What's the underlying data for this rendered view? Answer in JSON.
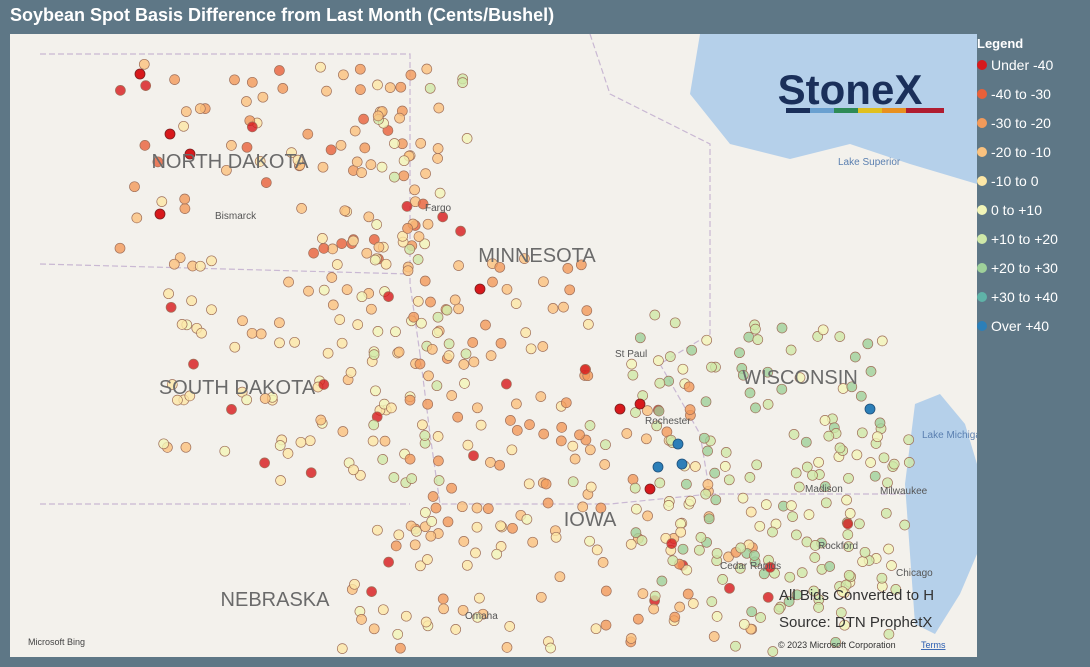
{
  "title": "Soybean Spot Basis Difference from Last Month (Cents/Bushel)",
  "legend": {
    "title": "Legend",
    "items": [
      {
        "label": "Under -40",
        "color": "#d7191c"
      },
      {
        "label": "-40 to -30",
        "color": "#e8603a"
      },
      {
        "label": "-30 to -20",
        "color": "#f39a5a"
      },
      {
        "label": "-20 to -10",
        "color": "#fbc27e"
      },
      {
        "label": "-10 to 0",
        "color": "#fde7a6"
      },
      {
        "label": "0 to +10",
        "color": "#f2f5b8"
      },
      {
        "label": "+10 to +20",
        "color": "#cfe8a8"
      },
      {
        "label": "+20 to +30",
        "color": "#9fd19a"
      },
      {
        "label": "+30 to +40",
        "color": "#5fb3a8"
      },
      {
        "label": "Over +40",
        "color": "#2c7fb8"
      }
    ]
  },
  "state_labels": [
    "NORTH DAKOTA",
    "SOUTH DAKOTA",
    "MINNESOTA",
    "WISCONSIN",
    "NEBRASKA",
    "IOWA"
  ],
  "place_labels": [
    "Bismarck",
    "Fargo",
    "St Paul",
    "Rochester",
    "Madison",
    "Milwaukee",
    "Rockford",
    "Chicago",
    "Cedar Rapids",
    "Omaha",
    "Lake Superior",
    "Lake Michigan"
  ],
  "logo": "StoneX",
  "notes": [
    "All Bids Converted to H",
    "Source: DTN ProphetX"
  ],
  "credit": "© 2023 Microsoft Corporation",
  "terms": "Terms",
  "bing": "Microsoft Bing"
}
